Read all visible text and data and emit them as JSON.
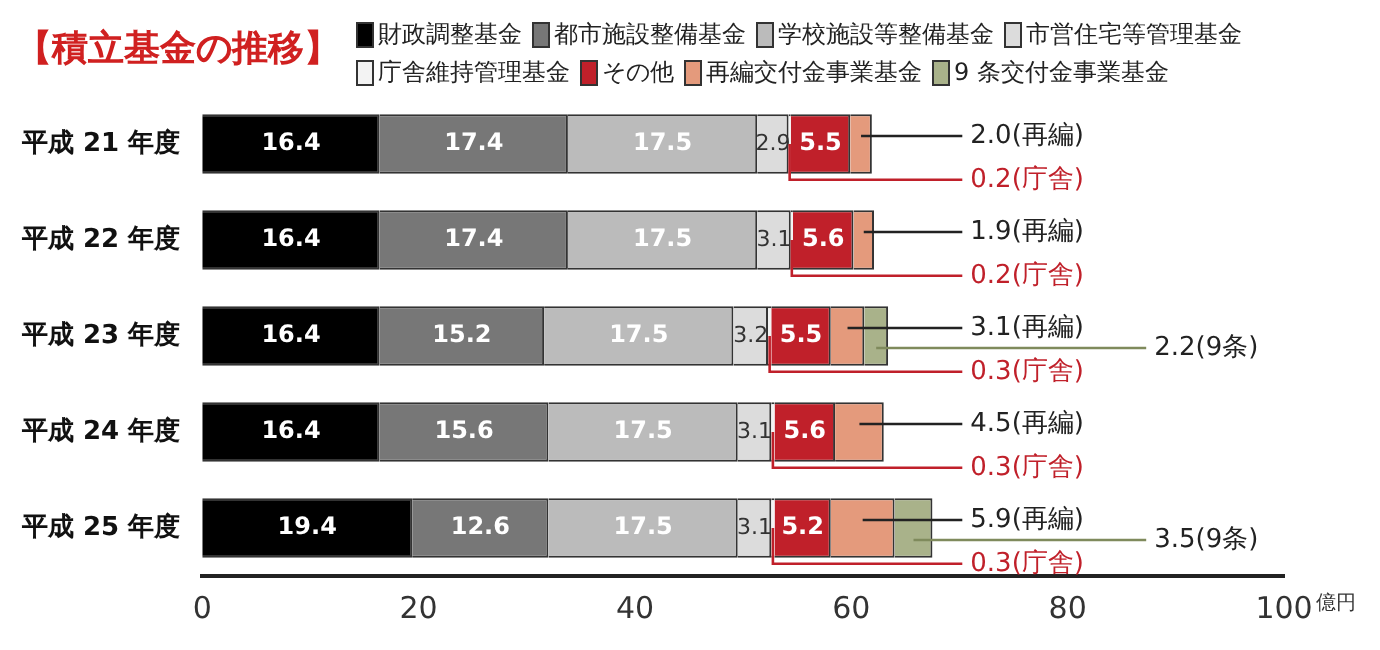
{
  "chart_data": {
    "type": "bar",
    "orientation": "horizontal",
    "stacked": true,
    "title": "【積立基金の推移】",
    "xlabel": "億円",
    "categories": [
      "平成 21 年度",
      "平成 22 年度",
      "平成 23 年度",
      "平成 24 年度",
      "平成 25 年度"
    ],
    "series": [
      {
        "name": "財政調整基金",
        "color": "#000000",
        "values": [
          16.4,
          16.4,
          16.4,
          16.4,
          19.4
        ],
        "value_labels": [
          "16.4",
          "16.4",
          "16.4",
          "16.4",
          "19.4"
        ]
      },
      {
        "name": "都市施設整備基金",
        "color": "#777777",
        "values": [
          17.4,
          17.4,
          15.2,
          15.6,
          12.6
        ],
        "value_labels": [
          "17.4",
          "17.4",
          "15.2",
          "15.6",
          "12.6"
        ]
      },
      {
        "name": "学校施設等整備基金",
        "color": "#bbbbbb",
        "values": [
          17.5,
          17.5,
          17.5,
          17.5,
          17.5
        ],
        "value_labels": [
          "17.5",
          "17.5",
          "17.5",
          "17.5",
          "17.5"
        ]
      },
      {
        "name": "市営住宅等管理基金",
        "color": "#dcdcdc",
        "values": [
          2.9,
          3.1,
          3.2,
          3.1,
          3.1
        ],
        "value_labels": [
          "2.9",
          "3.1",
          "3.2",
          "3.1",
          "3.1"
        ]
      },
      {
        "name": "庁舎維持管理基金",
        "color": "#f3f3f3",
        "values": [
          0.2,
          0.2,
          0.3,
          0.3,
          0.3
        ],
        "value_labels": [
          "0.2(庁舎)",
          "0.2(庁舎)",
          "0.3(庁舎)",
          "0.3(庁舎)",
          "0.3(庁舎)"
        ]
      },
      {
        "name": "その他",
        "color": "#c0202a",
        "values": [
          5.5,
          5.6,
          5.5,
          5.6,
          5.2
        ],
        "value_labels": [
          "5.5",
          "5.6",
          "5.5",
          "5.6",
          "5.2"
        ]
      },
      {
        "name": "再編交付金事業基金",
        "color": "#e49a7c",
        "values": [
          2.0,
          1.9,
          3.1,
          4.5,
          5.9
        ],
        "value_labels": [
          "2.0(再編)",
          "1.9(再編)",
          "3.1(再編)",
          "4.5(再編)",
          "5.9(再編)"
        ]
      },
      {
        "name": "9 条交付金事業基金",
        "color": "#a9b28a",
        "values": [
          null,
          null,
          2.2,
          null,
          3.5
        ],
        "value_labels": [
          null,
          null,
          "2.2(9条)",
          null,
          "3.5(9条)"
        ]
      }
    ],
    "xlim": [
      0,
      100
    ],
    "xticks": [
      0,
      20,
      40,
      60,
      80,
      100
    ],
    "grid": false,
    "legend": "top right"
  }
}
